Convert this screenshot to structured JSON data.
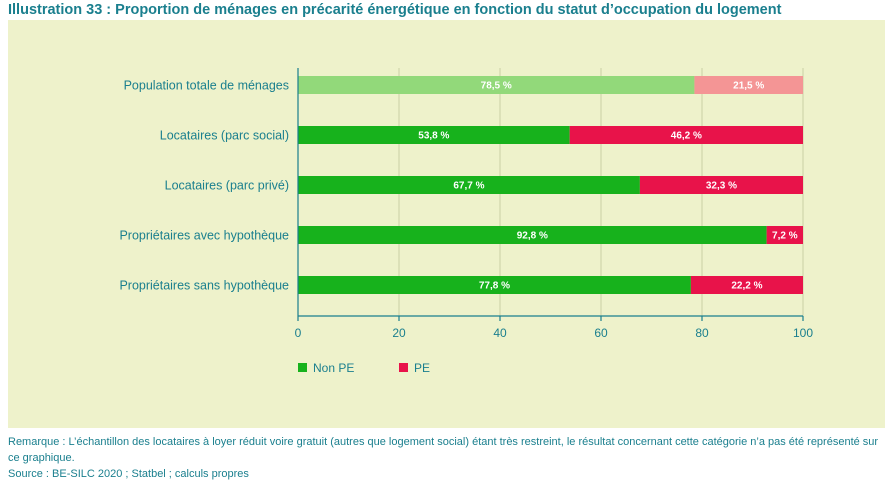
{
  "title": "Illustration 33 : Proportion de ménages en précarité énergétique en fonction du statut d’occupation du logement",
  "chart_data": {
    "type": "bar",
    "orientation": "horizontal",
    "stacked": true,
    "categories": [
      "Population totale de ménages",
      "Locataires (parc social)",
      "Locataires (parc privé)",
      "Propriétaires avec hypothèque",
      "Propriétaires sans hypothèque"
    ],
    "series": [
      {
        "name": "Non PE",
        "values": [
          78.5,
          53.8,
          67.7,
          92.8,
          77.8
        ],
        "labels": [
          "78,5 %",
          "53,8 %",
          "67,7 %",
          "92,8 %",
          "77,8 %"
        ],
        "color": "#17b21c",
        "first_row_color": "#92d97a"
      },
      {
        "name": "PE",
        "values": [
          21.5,
          46.2,
          32.3,
          7.2,
          22.2
        ],
        "labels": [
          "21,5 %",
          "46,2 %",
          "32,3 %",
          "7,2 %",
          "22,2 %"
        ],
        "color": "#e8134a",
        "first_row_color": "#f49595"
      }
    ],
    "xlim": [
      0,
      100
    ],
    "xticks": [
      "0",
      "20",
      "40",
      "60",
      "80",
      "100"
    ],
    "legend_position": "bottom-left",
    "grid": true
  },
  "note": {
    "remark": "Remarque : L’échantillon des locataires à loyer réduit voire gratuit (autres que logement social) étant très restreint, le résultat concernant cette catégorie n’a pas été représenté sur ce graphique.",
    "source": "Source : BE-SILC 2020 ; Statbel ; calculs propres"
  }
}
